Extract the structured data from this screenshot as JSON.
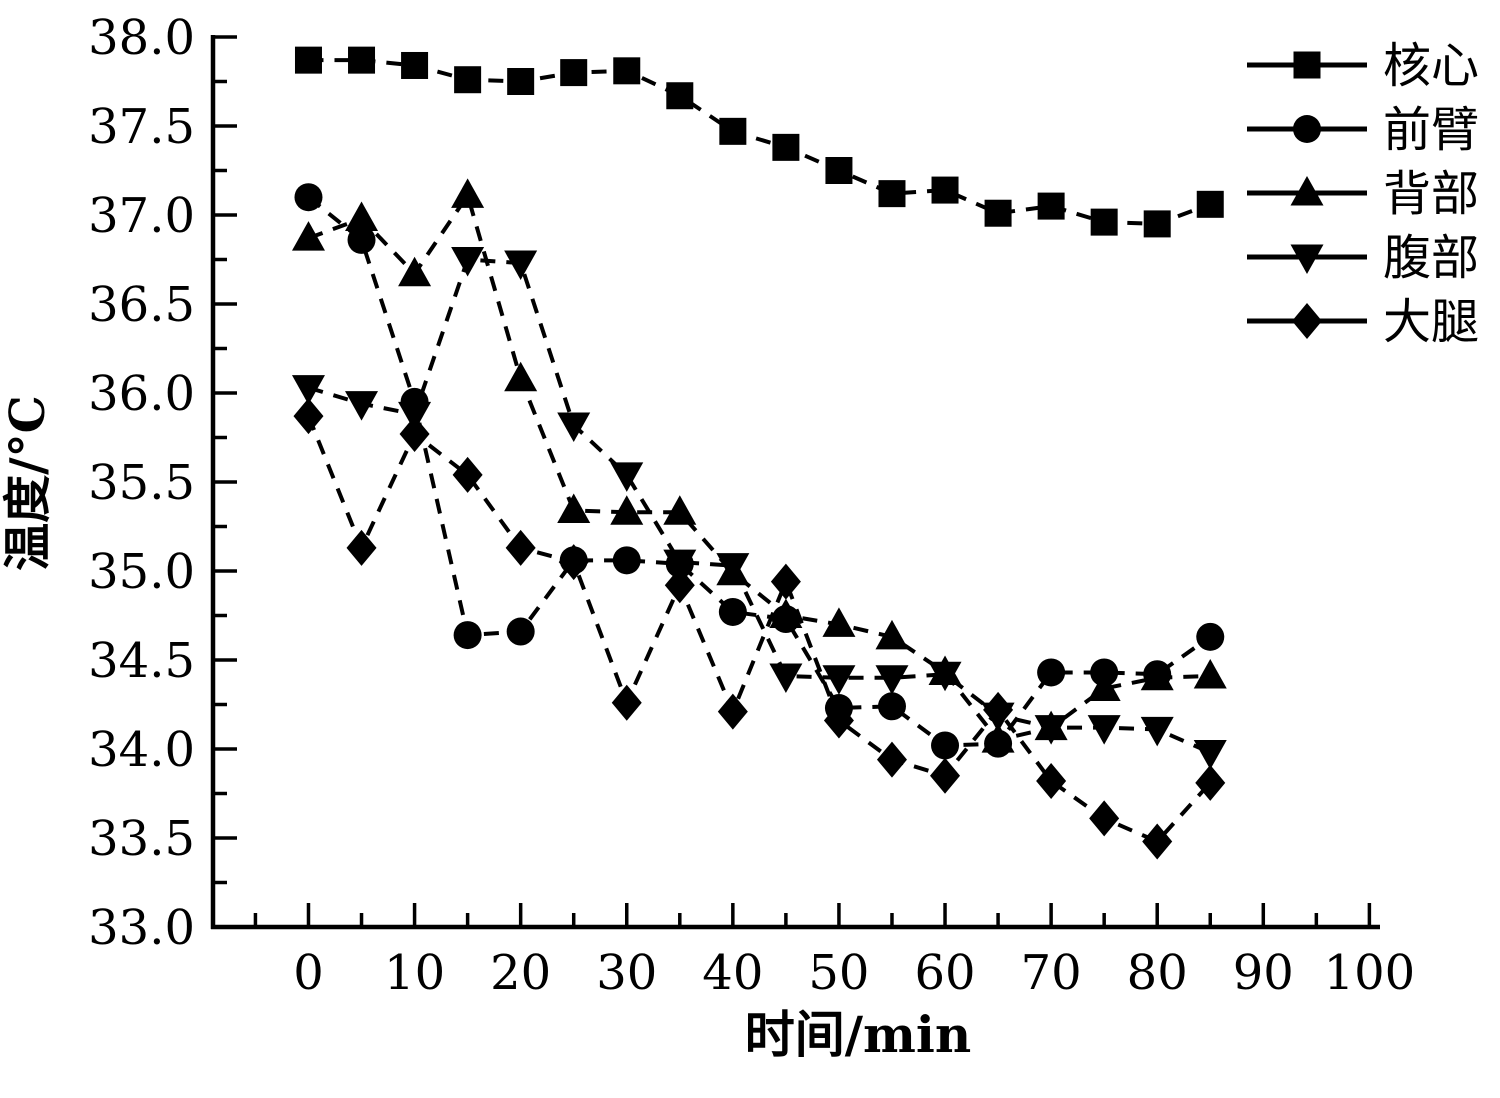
{
  "figure": {
    "background": "#ffffff",
    "ink_color": "#000000",
    "line_style": "dashed"
  },
  "chart_data": {
    "type": "line",
    "title": "",
    "xlabel": "时间/min",
    "ylabel": "温度/°C",
    "xlim": [
      -9,
      101
    ],
    "ylim": [
      33.0,
      38.0
    ],
    "grid": false,
    "legend_position": "top-right",
    "x_ticks_major": [
      0,
      10,
      20,
      30,
      40,
      50,
      60,
      70,
      80,
      90,
      100
    ],
    "x_tick_labels": [
      "0",
      "10",
      "20",
      "30",
      "40",
      "50",
      "60",
      "70",
      "80",
      "90",
      "100"
    ],
    "x_minor_step": 5,
    "y_ticks_major": [
      33.0,
      33.5,
      34.0,
      34.5,
      35.0,
      35.5,
      36.0,
      36.5,
      37.0,
      37.5,
      38.0
    ],
    "y_tick_labels": [
      "33.0",
      "33.5",
      "34.0",
      "34.5",
      "35.0",
      "35.5",
      "36.0",
      "36.5",
      "37.0",
      "37.5",
      "38.0"
    ],
    "y_minor_step": 0.25,
    "x": [
      0,
      5,
      10,
      15,
      20,
      25,
      30,
      35,
      40,
      45,
      50,
      55,
      60,
      65,
      70,
      75,
      80,
      85
    ],
    "series": [
      {
        "name": "核心",
        "marker": "square",
        "color": "#000000",
        "values": [
          37.87,
          37.87,
          37.84,
          37.76,
          37.75,
          37.8,
          37.81,
          37.67,
          37.47,
          37.38,
          37.25,
          37.12,
          37.14,
          37.01,
          37.05,
          36.96,
          36.95,
          37.06
        ]
      },
      {
        "name": "前臂",
        "marker": "circle",
        "color": "#000000",
        "values": [
          37.1,
          36.86,
          35.95,
          34.64,
          34.66,
          35.06,
          35.06,
          35.04,
          34.77,
          34.73,
          34.23,
          34.24,
          34.02,
          34.03,
          34.43,
          34.43,
          34.42,
          34.63
        ]
      },
      {
        "name": "背部",
        "marker": "triangle-up",
        "color": "#000000",
        "values": [
          36.87,
          36.98,
          36.67,
          37.11,
          36.08,
          35.34,
          35.33,
          35.33,
          34.99,
          34.75,
          34.7,
          34.63,
          34.43,
          34.05,
          34.12,
          34.34,
          34.4,
          34.41
        ]
      },
      {
        "name": "腹部",
        "marker": "triangle-down",
        "color": "#000000",
        "values": [
          36.03,
          35.94,
          35.88,
          36.75,
          36.73,
          35.82,
          35.54,
          35.05,
          35.03,
          34.41,
          34.4,
          34.4,
          34.42,
          34.19,
          34.12,
          34.12,
          34.11,
          33.98
        ]
      },
      {
        "name": "大腿",
        "marker": "diamond",
        "color": "#000000",
        "values": [
          35.87,
          35.13,
          35.77,
          35.54,
          35.13,
          35.05,
          34.26,
          34.92,
          34.21,
          34.94,
          34.16,
          33.94,
          33.85,
          34.22,
          33.82,
          33.61,
          33.48,
          33.81
        ]
      }
    ]
  }
}
